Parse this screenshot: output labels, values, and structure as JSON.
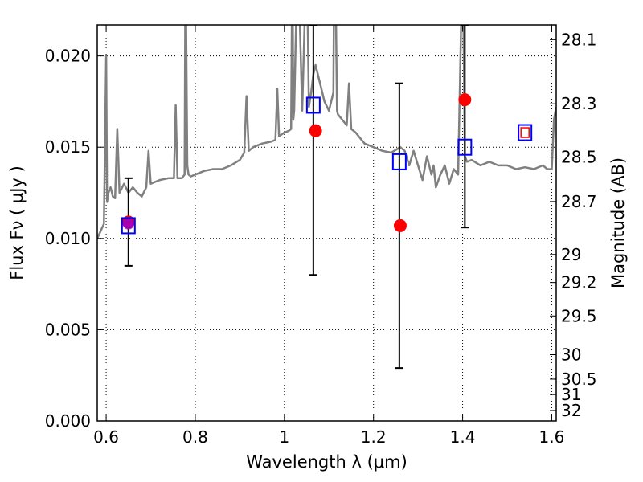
{
  "chart_data": {
    "type": "scatter",
    "xlabel": "Wavelength  λ (μm)",
    "ylabel": "Flux  Fν  ( μJy )",
    "y2label": "Magnitude (AB)",
    "xlim": [
      0.58,
      1.61
    ],
    "ylim": [
      0.0,
      0.0217
    ],
    "grid": true,
    "x_ticks": [
      "0.6",
      "0.8",
      "1",
      "1.2",
      "1.4",
      "1.6"
    ],
    "y_ticks": [
      "0.000",
      "0.005",
      "0.010",
      "0.015",
      "0.020"
    ],
    "y2_ticks": [
      "28.1",
      "28.3",
      "28.5",
      "28.7",
      "29",
      "29.2",
      "29.5",
      "30",
      "30.5",
      "31",
      "32"
    ],
    "template_spectrum": {
      "color": "#808080",
      "x": [
        0.58,
        0.595,
        0.6,
        0.602,
        0.605,
        0.61,
        0.615,
        0.62,
        0.625,
        0.63,
        0.64,
        0.65,
        0.66,
        0.67,
        0.68,
        0.69,
        0.695,
        0.7,
        0.72,
        0.74,
        0.752,
        0.756,
        0.76,
        0.77,
        0.776,
        0.778,
        0.782,
        0.785,
        0.79,
        0.8,
        0.82,
        0.84,
        0.86,
        0.88,
        0.9,
        0.91,
        0.915,
        0.92,
        0.93,
        0.95,
        0.97,
        0.98,
        0.984,
        0.988,
        1.0,
        1.01,
        1.015,
        1.018,
        1.02,
        1.022,
        1.03,
        1.04,
        1.05,
        1.055,
        1.06,
        1.065,
        1.07,
        1.08,
        1.09,
        1.1,
        1.11,
        1.112,
        1.114,
        1.118,
        1.12,
        1.13,
        1.14,
        1.145,
        1.15,
        1.16,
        1.18,
        1.2,
        1.22,
        1.24,
        1.26,
        1.27,
        1.28,
        1.29,
        1.3,
        1.31,
        1.32,
        1.33,
        1.335,
        1.34,
        1.35,
        1.36,
        1.37,
        1.38,
        1.39,
        1.4,
        1.405,
        1.41,
        1.42,
        1.44,
        1.46,
        1.48,
        1.5,
        1.52,
        1.54,
        1.56,
        1.58,
        1.59,
        1.6,
        1.605,
        1.61
      ],
      "y": [
        0.01,
        0.0108,
        0.02,
        0.012,
        0.0125,
        0.0128,
        0.0123,
        0.0122,
        0.016,
        0.0125,
        0.013,
        0.0125,
        0.0128,
        0.0125,
        0.0123,
        0.0128,
        0.0148,
        0.013,
        0.0132,
        0.0133,
        0.0133,
        0.0173,
        0.0133,
        0.0133,
        0.0135,
        0.026,
        0.014,
        0.0135,
        0.0134,
        0.0135,
        0.0137,
        0.0138,
        0.0138,
        0.014,
        0.0143,
        0.0147,
        0.0178,
        0.0148,
        0.015,
        0.0152,
        0.0153,
        0.0154,
        0.0182,
        0.0156,
        0.0158,
        0.0159,
        0.016,
        0.026,
        0.0165,
        0.017,
        0.026,
        0.017,
        0.026,
        0.0172,
        0.018,
        0.019,
        0.0195,
        0.0185,
        0.0175,
        0.017,
        0.018,
        0.026,
        0.026,
        0.017,
        0.0168,
        0.0165,
        0.0162,
        0.0185,
        0.016,
        0.0158,
        0.0152,
        0.015,
        0.0148,
        0.0147,
        0.015,
        0.0148,
        0.014,
        0.0148,
        0.014,
        0.0132,
        0.0145,
        0.0135,
        0.014,
        0.0128,
        0.0135,
        0.014,
        0.013,
        0.0138,
        0.0135,
        0.026,
        0.0145,
        0.0142,
        0.0143,
        0.014,
        0.0142,
        0.014,
        0.014,
        0.0138,
        0.0139,
        0.0138,
        0.014,
        0.0138,
        0.0138,
        0.0165,
        0.0172
      ]
    },
    "series": [
      {
        "name": "",
        "type": "marker-circle",
        "color": "#ff0000",
        "x": [
          0.65,
          1.07,
          1.26,
          1.405
        ],
        "y": [
          0.0109,
          0.0159,
          0.0107,
          0.0176
        ]
      },
      {
        "name": "",
        "type": "marker-square-open",
        "color": "#0000ff",
        "x": [
          0.65,
          1.065,
          1.258,
          1.405,
          1.54
        ],
        "y": [
          0.0107,
          0.0173,
          0.0142,
          0.015,
          0.0158
        ]
      }
    ],
    "violet_overlap_point": {
      "x": 0.65,
      "y": 0.0108,
      "color": "#9900cc"
    },
    "inner_red_square": {
      "x": 1.54,
      "y": 0.0158,
      "color": "#ff0000"
    },
    "error_bars": [
      {
        "x": 0.65,
        "low": 0.0085,
        "high": 0.0133
      },
      {
        "x": 1.065,
        "low": 0.008,
        "high": 0.0217
      },
      {
        "x": 1.258,
        "low": 0.0029,
        "high": 0.0185
      },
      {
        "x": 1.405,
        "low": 0.0106,
        "high": 0.0217
      }
    ]
  }
}
